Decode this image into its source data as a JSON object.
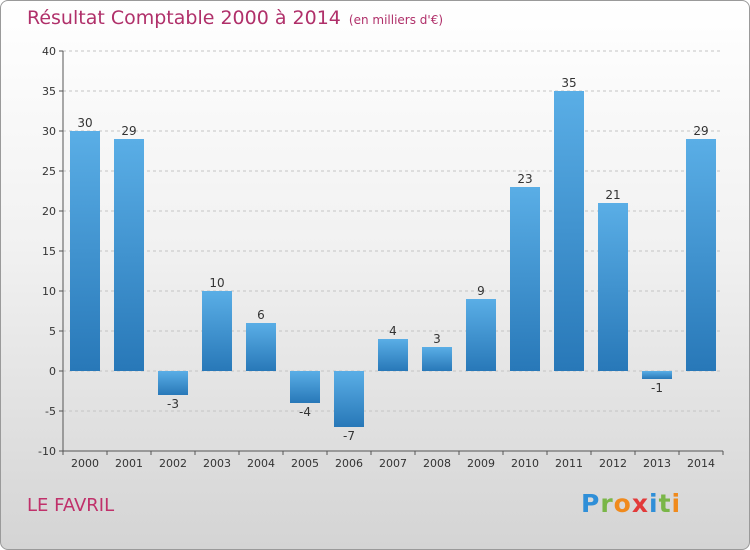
{
  "title": "Résultat Comptable 2000 à 2014",
  "subtitle": "(en milliers d'€)",
  "commune": "LE FAVRIL",
  "logo": {
    "letters": [
      "P",
      "r",
      "o",
      "x",
      "i",
      "t",
      "i"
    ]
  },
  "colors": {
    "bar_light": "#5aaee6",
    "bar_dark": "#2878b8",
    "title": "#b0306a"
  },
  "chart_data": {
    "type": "bar",
    "categories": [
      "2000",
      "2001",
      "2002",
      "2003",
      "2004",
      "2005",
      "2006",
      "2007",
      "2008",
      "2009",
      "2010",
      "2011",
      "2012",
      "2013",
      "2014"
    ],
    "values": [
      30,
      29,
      -3,
      10,
      6,
      -4,
      -7,
      4,
      3,
      9,
      23,
      35,
      21,
      -1,
      29
    ],
    "yticks": [
      -10,
      -5,
      0,
      5,
      10,
      15,
      20,
      25,
      30,
      35,
      40
    ],
    "ylim": [
      -10,
      40
    ],
    "grid": true,
    "title": "Résultat Comptable 2000 à 2014",
    "xlabel": "",
    "ylabel": ""
  }
}
